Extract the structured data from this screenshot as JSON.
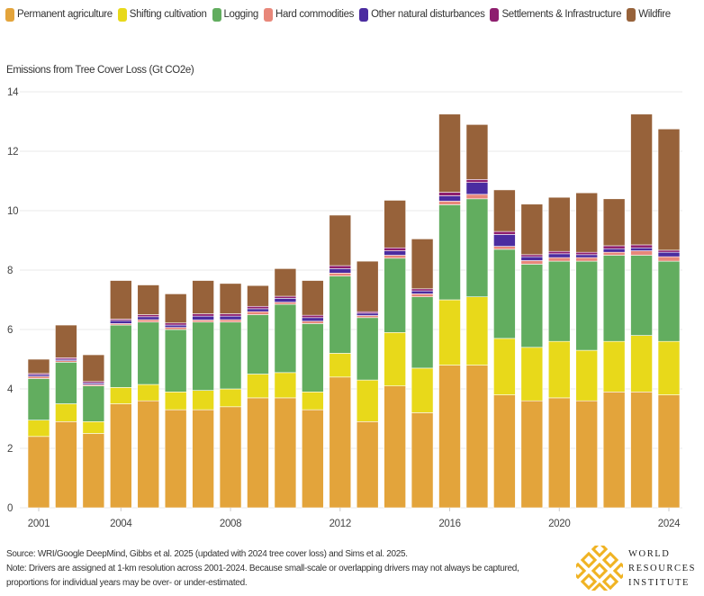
{
  "legend": [
    {
      "label": "Permanent agriculture",
      "color": "#E3A43B"
    },
    {
      "label": "Shifting cultivation",
      "color": "#E8D91A"
    },
    {
      "label": "Logging",
      "color": "#62AD5F"
    },
    {
      "label": "Hard commodities",
      "color": "#E8877A"
    },
    {
      "label": "Other natural disturbances",
      "color": "#4B2CA0"
    },
    {
      "label": "Settlements & Infrastructure",
      "color": "#8E1E6E"
    },
    {
      "label": "Wildfire",
      "color": "#97623A"
    }
  ],
  "chart_data": {
    "type": "bar",
    "stacked": true,
    "title": "",
    "ylabel": "Emissions from Tree Cover Loss (Gt CO2e)",
    "xlabel": "",
    "ylim": [
      0,
      14
    ],
    "yticks": [
      "0",
      "2",
      "4",
      "6",
      "8",
      "10",
      "12",
      "14"
    ],
    "xticks": [
      "2001",
      "2004",
      "2008",
      "2012",
      "2016",
      "2020",
      "2024"
    ],
    "grid": true,
    "legend_position": "top",
    "categories": [
      "2001",
      "2002",
      "2003",
      "2004",
      "2005",
      "2006",
      "2007",
      "2008",
      "2009",
      "2010",
      "2011",
      "2012",
      "2013",
      "2014",
      "2015",
      "2016",
      "2017",
      "2018",
      "2019",
      "2020",
      "2021",
      "2022",
      "2023",
      "2024"
    ],
    "series": [
      {
        "name": "Permanent agriculture",
        "color": "#E3A43B",
        "values": [
          2.4,
          2.9,
          2.5,
          3.5,
          3.6,
          3.3,
          3.3,
          3.4,
          3.7,
          3.7,
          3.3,
          4.4,
          2.9,
          4.1,
          3.2,
          4.8,
          4.8,
          3.8,
          3.6,
          3.7,
          3.6,
          3.9,
          3.9,
          3.8
        ]
      },
      {
        "name": "Shifting cultivation",
        "color": "#E8D91A",
        "values": [
          0.55,
          0.6,
          0.4,
          0.55,
          0.55,
          0.6,
          0.65,
          0.6,
          0.8,
          0.85,
          0.6,
          0.8,
          1.4,
          1.8,
          1.5,
          2.2,
          2.3,
          1.9,
          1.8,
          1.9,
          1.7,
          1.7,
          1.9,
          1.8
        ]
      },
      {
        "name": "Logging",
        "color": "#62AD5F",
        "values": [
          1.4,
          1.4,
          1.2,
          2.1,
          2.1,
          2.1,
          2.3,
          2.25,
          2.0,
          2.3,
          2.3,
          2.6,
          2.1,
          2.5,
          2.4,
          3.2,
          3.3,
          3.0,
          2.8,
          2.7,
          3.0,
          2.9,
          2.7,
          2.7
        ]
      },
      {
        "name": "Hard commodities",
        "color": "#E8877A",
        "values": [
          0.07,
          0.05,
          0.05,
          0.05,
          0.08,
          0.07,
          0.07,
          0.08,
          0.1,
          0.07,
          0.08,
          0.1,
          0.07,
          0.1,
          0.1,
          0.12,
          0.15,
          0.1,
          0.12,
          0.12,
          0.12,
          0.1,
          0.15,
          0.15
        ]
      },
      {
        "name": "Other natural disturbances",
        "color": "#4B2CA0",
        "values": [
          0.06,
          0.05,
          0.05,
          0.1,
          0.1,
          0.08,
          0.13,
          0.12,
          0.1,
          0.13,
          0.12,
          0.15,
          0.08,
          0.15,
          0.1,
          0.18,
          0.4,
          0.4,
          0.13,
          0.13,
          0.1,
          0.12,
          0.1,
          0.15
        ]
      },
      {
        "name": "Settlements & Infrastructure",
        "color": "#8E1E6E",
        "values": [
          0.04,
          0.05,
          0.05,
          0.05,
          0.07,
          0.07,
          0.08,
          0.08,
          0.08,
          0.07,
          0.08,
          0.1,
          0.05,
          0.1,
          0.07,
          0.12,
          0.1,
          0.1,
          0.07,
          0.08,
          0.08,
          0.1,
          0.1,
          0.07
        ]
      },
      {
        "name": "Wildfire",
        "color": "#97623A",
        "values": [
          0.48,
          1.1,
          0.9,
          1.3,
          1.0,
          0.98,
          1.12,
          1.02,
          0.7,
          0.93,
          1.17,
          1.7,
          1.7,
          1.6,
          1.68,
          2.63,
          1.85,
          1.4,
          1.7,
          1.82,
          2.0,
          1.58,
          4.4,
          4.08
        ]
      }
    ]
  },
  "footer": {
    "source": "Source: WRI/Google DeepMind, Gibbs et al. 2025 (updated with 2024 tree cover loss) and Sims et al. 2025.",
    "note": "Note: Drivers are assigned at 1-km resolution across 2001-2024. Because small-scale or overlapping drivers may not always be captured, proportions for individual years may be over- or under-estimated."
  },
  "logo": {
    "line1": "WORLD",
    "line2": "RESOURCES",
    "line3": "INSTITUTE",
    "color": "#F0B323"
  }
}
